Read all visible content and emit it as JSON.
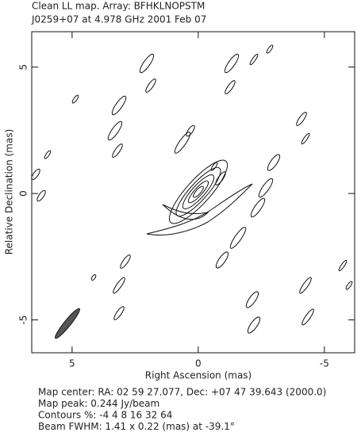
{
  "chart_data": {
    "type": "contour",
    "title": "Clean LL map.  Array:  BFHKLNOPSTM",
    "subtitle": "J0259+07 at 4.978 GHz 2001 Feb 07",
    "x_label": "Right Ascension  (mas)",
    "y_label": "Relative Declination  (mas)",
    "xlim": [
      6.6,
      -6.2
    ],
    "ylim": [
      -6.3,
      6.4
    ],
    "xticks": [
      5,
      0,
      -5
    ],
    "yticks": [
      5,
      0,
      -5
    ],
    "notes": [
      "Map center:  RA: 02 59 27.077,  Dec: +07 47 39.643 (2000.0)",
      "Map peak: 0.244 Jy/beam",
      "Contours %: -4 4 8 16 32 64",
      "Beam FWHM: 1.41 x 0.22 (mas) at -39.1°"
    ]
  }
}
